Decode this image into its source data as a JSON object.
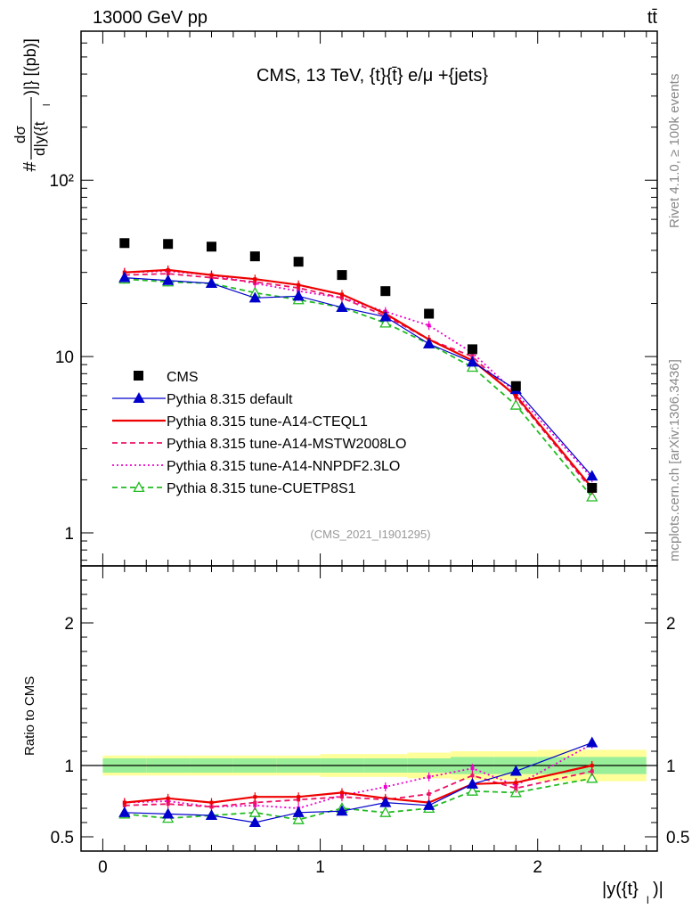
{
  "header": {
    "beam": "13000 GeV pp",
    "process": "tt̄"
  },
  "side": {
    "rivet": "Rivet 4.1.0, ≥ 100k events",
    "mcplots": "mcplots.cern.ch [arXiv:1306.3436]"
  },
  "chart_data": {
    "type": "line",
    "title": "CMS, 13 TeV, {t}{t̄} e/μ +{jets}",
    "ylabel_main": "#dσ/d|y({t}_l)| [pb]",
    "ylabel_main_parts": {
      "hash": "#",
      "num": "dσ",
      "den": "d|y({t",
      "sub": "l",
      "close": ")|} [(pb)]"
    },
    "ylabel_ratio": "Ratio to CMS",
    "xlabel": "|y({t}_l)|",
    "xlabel_parts": {
      "main": "|y({t}",
      "sub": "l",
      "close": ")|"
    },
    "analysis_id": "(CMS_2021_I1901295)",
    "main_yscale": "log",
    "main_ylim": [
      0.65,
      700
    ],
    "ratio_ylim": [
      0.4,
      2.4
    ],
    "xlim": [
      -0.1,
      2.55
    ],
    "x_ticks": [
      0,
      1,
      2
    ],
    "main_y_ticks": [
      {
        "v": 1,
        "label": "1"
      },
      {
        "v": 10,
        "label": "10"
      },
      {
        "v": 100,
        "label": "10²"
      }
    ],
    "ratio_y_ticks": [
      {
        "v": 0.5,
        "label": "0.5"
      },
      {
        "v": 1,
        "label": "1"
      },
      {
        "v": 2,
        "label": "2"
      }
    ],
    "x": [
      0.1,
      0.3,
      0.5,
      0.7,
      0.9,
      1.1,
      1.3,
      1.5,
      1.7,
      1.9,
      2.25
    ],
    "x_edges": [
      0,
      0.2,
      0.4,
      0.6,
      0.8,
      1.0,
      1.2,
      1.4,
      1.6,
      1.8,
      2.0,
      2.5
    ],
    "cms": [
      44,
      43.5,
      42,
      37,
      34.5,
      29,
      23.5,
      17.5,
      11,
      6.8,
      1.8
    ],
    "band_inner": [
      0.95,
      0.95,
      0.95,
      0.95,
      0.95,
      0.95,
      0.95,
      0.95,
      0.94,
      0.94,
      0.94
    ],
    "band_inner_hi": [
      1.05,
      1.05,
      1.05,
      1.05,
      1.05,
      1.05,
      1.05,
      1.05,
      1.06,
      1.06,
      1.06
    ],
    "band_outer": [
      0.93,
      0.93,
      0.93,
      0.93,
      0.93,
      0.92,
      0.92,
      0.91,
      0.9,
      0.9,
      0.89
    ],
    "band_outer_hi": [
      1.07,
      1.07,
      1.07,
      1.07,
      1.07,
      1.08,
      1.08,
      1.09,
      1.1,
      1.1,
      1.11
    ],
    "series": [
      {
        "name": "CMS",
        "color": "#000000",
        "style": "cms"
      },
      {
        "name": "Pythia 8.315 default",
        "color": "#0000cc",
        "style": "solid-tri",
        "values": [
          28,
          27,
          26,
          21.5,
          22,
          19,
          16.8,
          11.8,
          9.3,
          6.5,
          2.1
        ],
        "ratio": [
          0.67,
          0.66,
          0.65,
          0.6,
          0.67,
          0.68,
          0.74,
          0.72,
          0.87,
          0.96,
          1.16
        ]
      },
      {
        "name": "Pythia 8.315 tune-A14-CTEQL1",
        "color": "#ee0000",
        "style": "solid",
        "values": [
          30,
          31,
          29,
          27.5,
          25.5,
          22.5,
          17.5,
          12.5,
          9.5,
          6.0,
          1.8
        ],
        "ratio": [
          0.74,
          0.77,
          0.74,
          0.78,
          0.78,
          0.81,
          0.77,
          0.74,
          0.87,
          0.88,
          1.0
        ]
      },
      {
        "name": "Pythia 8.315 tune-A14-MSTW2008LO",
        "color": "#ee1166",
        "style": "dash",
        "values": [
          29,
          29.5,
          28,
          26.5,
          24.5,
          21.5,
          17,
          12.5,
          10,
          5.9,
          1.75
        ],
        "ratio": [
          0.72,
          0.73,
          0.71,
          0.74,
          0.76,
          0.78,
          0.76,
          0.8,
          0.93,
          0.84,
          0.96
        ]
      },
      {
        "name": "Pythia 8.315 tune-A14-NNPDF2.3LO",
        "color": "#ee00cc",
        "style": "dot",
        "values": [
          30,
          30.5,
          29,
          26,
          23.5,
          21.5,
          18,
          15,
          10.5,
          6.2,
          2.05
        ],
        "ratio": [
          0.74,
          0.75,
          0.71,
          0.72,
          0.7,
          0.79,
          0.85,
          0.92,
          0.98,
          0.86,
          1.15
        ]
      },
      {
        "name": "Pythia 8.315 tune-CUETP8S1",
        "color": "#22bb22",
        "style": "dash-open-tri",
        "values": [
          27.5,
          26.5,
          26,
          23,
          21,
          19,
          15.5,
          11.8,
          8.7,
          5.3,
          1.6
        ],
        "ratio": [
          0.66,
          0.63,
          0.65,
          0.67,
          0.62,
          0.7,
          0.67,
          0.7,
          0.82,
          0.81,
          0.91
        ]
      }
    ]
  }
}
